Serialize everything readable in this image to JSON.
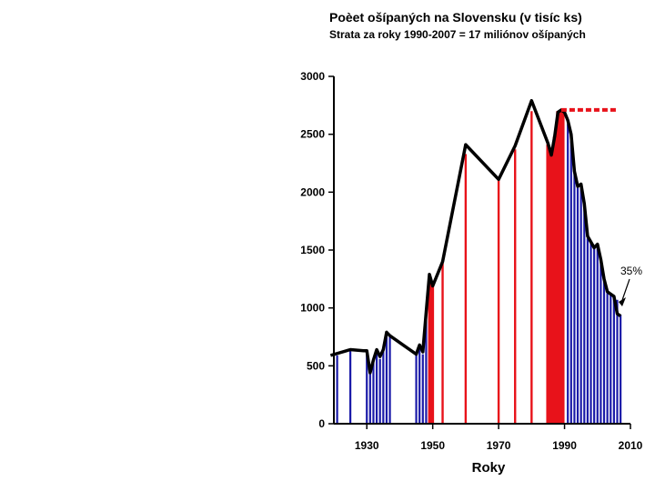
{
  "chart_data": {
    "type": "bar",
    "title": "Poèet ošípaných na Slovensku (v tisíc ks)",
    "subtitle": "Strata za roky 1990-2007 = 17 miliónov ošípaných",
    "xlabel": "Roky",
    "ylabel": "",
    "xlim": [
      1920,
      2010
    ],
    "ylim": [
      0,
      3000
    ],
    "x_ticks": [
      1930,
      1950,
      1970,
      1990,
      2010
    ],
    "y_ticks": [
      0,
      500,
      1000,
      1500,
      2000,
      2500,
      3000
    ],
    "line": {
      "x": [
        1919,
        1925,
        1929,
        1930,
        1931,
        1932,
        1933,
        1934,
        1935,
        1936,
        1937,
        1945,
        1946,
        1947,
        1948,
        1949,
        1950,
        1953,
        1960,
        1970,
        1975,
        1980,
        1985,
        1986,
        1987,
        1988,
        1989,
        1990,
        1991,
        1992,
        1993,
        1994,
        1995,
        1996,
        1997,
        1998,
        1999,
        2000,
        2001,
        2002,
        2003,
        2004,
        2005,
        2006,
        2007
      ],
      "y": [
        590,
        640,
        630,
        630,
        440,
        550,
        640,
        580,
        640,
        790,
        760,
        600,
        680,
        620,
        960,
        1290,
        1190,
        1400,
        2410,
        2110,
        2400,
        2790,
        2420,
        2320,
        2480,
        2690,
        2710,
        2690,
        2620,
        2500,
        2180,
        2050,
        2070,
        1900,
        1620,
        1570,
        1520,
        1550,
        1420,
        1250,
        1140,
        1120,
        1100,
        950,
        930
      ]
    },
    "bars_blue": {
      "x": [
        1921,
        1925,
        1930,
        1931,
        1932,
        1933,
        1934,
        1935,
        1936,
        1937,
        1945,
        1946,
        1947,
        1948,
        1991,
        1992,
        1993,
        1994,
        1995,
        1996,
        1997,
        1998,
        1999,
        2000,
        2001,
        2002,
        2003,
        2004,
        2005,
        2006,
        2007
      ],
      "values": [
        590,
        640,
        630,
        430,
        550,
        620,
        560,
        640,
        780,
        760,
        600,
        680,
        600,
        960,
        2590,
        2440,
        2180,
        2040,
        2070,
        1890,
        1600,
        1570,
        1510,
        1540,
        1420,
        1240,
        1130,
        1120,
        1090,
        1070,
        940
      ]
    },
    "bars_red": {
      "x": [
        1949,
        1950,
        1953,
        1960,
        1970,
        1975,
        1980,
        1985,
        1986,
        1987,
        1988,
        1989
      ],
      "values": [
        1260,
        1210,
        1400,
        2330,
        2110,
        2370,
        2700,
        2410,
        2320,
        2480,
        2700,
        2700
      ],
      "filled_from": 1985
    },
    "dotted_line": {
      "y": 2710,
      "x": [
        1989,
        2006
      ]
    },
    "annotations": [
      {
        "text": "35%",
        "x": 2006,
        "y": 1320
      }
    ],
    "colors": {
      "blue": "#1a1aa8",
      "red": "#e8121a",
      "line": "#000000",
      "dotted": "#e8121a"
    }
  }
}
